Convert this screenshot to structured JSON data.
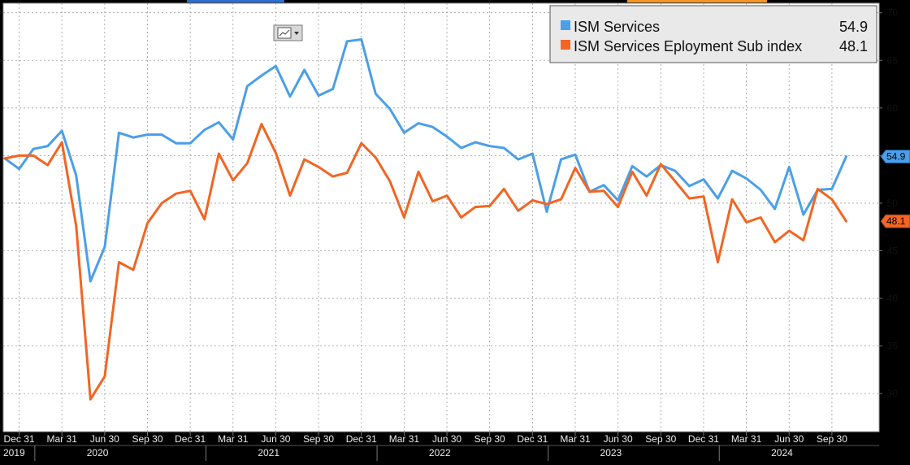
{
  "chart_data": {
    "type": "line",
    "x": [
      "2019-11",
      "2019-12",
      "2020-01",
      "2020-02",
      "2020-03",
      "2020-04",
      "2020-05",
      "2020-06",
      "2020-07",
      "2020-08",
      "2020-09",
      "2020-10",
      "2020-11",
      "2020-12",
      "2021-01",
      "2021-02",
      "2021-03",
      "2021-04",
      "2021-05",
      "2021-06",
      "2021-07",
      "2021-08",
      "2021-09",
      "2021-10",
      "2021-11",
      "2021-12",
      "2022-01",
      "2022-02",
      "2022-03",
      "2022-04",
      "2022-05",
      "2022-06",
      "2022-07",
      "2022-08",
      "2022-09",
      "2022-10",
      "2022-11",
      "2022-12",
      "2023-01",
      "2023-02",
      "2023-03",
      "2023-04",
      "2023-05",
      "2023-06",
      "2023-07",
      "2023-08",
      "2023-09",
      "2023-10",
      "2023-11",
      "2023-12",
      "2024-01",
      "2024-02",
      "2024-03",
      "2024-04",
      "2024-05",
      "2024-06",
      "2024-07",
      "2024-08",
      "2024-09",
      "2024-10"
    ],
    "series": [
      {
        "name": "ISM Services",
        "color": "#4a9fe8",
        "last_value": "54.9",
        "values": [
          54.7,
          53.6,
          55.7,
          56.0,
          57.6,
          52.9,
          41.8,
          45.4,
          57.4,
          56.9,
          57.2,
          57.2,
          56.3,
          56.3,
          57.7,
          58.5,
          56.7,
          62.3,
          63.4,
          64.4,
          61.2,
          64.0,
          61.3,
          62.0,
          67.0,
          67.2,
          61.5,
          59.9,
          57.4,
          58.4,
          58.0,
          57.0,
          55.8,
          56.4,
          56.0,
          55.8,
          54.6,
          55.2,
          49.1,
          54.6,
          55.1,
          51.2,
          51.9,
          50.3,
          53.9,
          52.8,
          54.0,
          53.4,
          51.8,
          52.5,
          50.5,
          53.4,
          52.6,
          51.4,
          49.4,
          53.8,
          48.8,
          51.4,
          51.5,
          54.9
        ]
      },
      {
        "name": "ISM Services Eployment Sub index",
        "color": "#f26522",
        "last_value": "48.1",
        "values": [
          54.7,
          55.0,
          55.0,
          54.0,
          56.4,
          47.6,
          29.4,
          31.8,
          43.8,
          43.0,
          47.9,
          50.0,
          51.0,
          51.3,
          48.3,
          55.2,
          52.4,
          54.2,
          58.3,
          55.3,
          50.8,
          54.6,
          53.8,
          52.8,
          53.2,
          56.3,
          54.8,
          52.3,
          48.5,
          53.3,
          50.2,
          50.8,
          48.5,
          49.6,
          49.7,
          51.5,
          49.2,
          50.3,
          49.9,
          50.4,
          53.7,
          51.2,
          51.3,
          49.6,
          53.3,
          50.8,
          54.1,
          52.3,
          50.5,
          50.7,
          43.8,
          50.4,
          48.0,
          48.5,
          45.9,
          47.1,
          46.1,
          51.5,
          50.4,
          48.1
        ]
      }
    ],
    "ylim": [
      26,
      71
    ],
    "y_ticks": [
      "30",
      "35",
      "40",
      "45",
      "50",
      "55",
      "60",
      "65",
      "70"
    ],
    "x_tick_labels": [
      "Dec 31",
      "Mar 31",
      "Jun 30",
      "Sep 30",
      "Dec 31",
      "Mar 31",
      "Jun 30",
      "Sep 30",
      "Dec 31",
      "Mar 31",
      "Jun 30",
      "Sep 30",
      "Dec 31",
      "Mar 31",
      "Jun 30",
      "Sep 30",
      "Dec 31",
      "Mar 31",
      "Jun 30",
      "Sep 30"
    ],
    "year_labels": [
      "2019",
      "2020",
      "2021",
      "2022",
      "2023",
      "2024"
    ],
    "grid": true,
    "legend_position": "top-right"
  }
}
